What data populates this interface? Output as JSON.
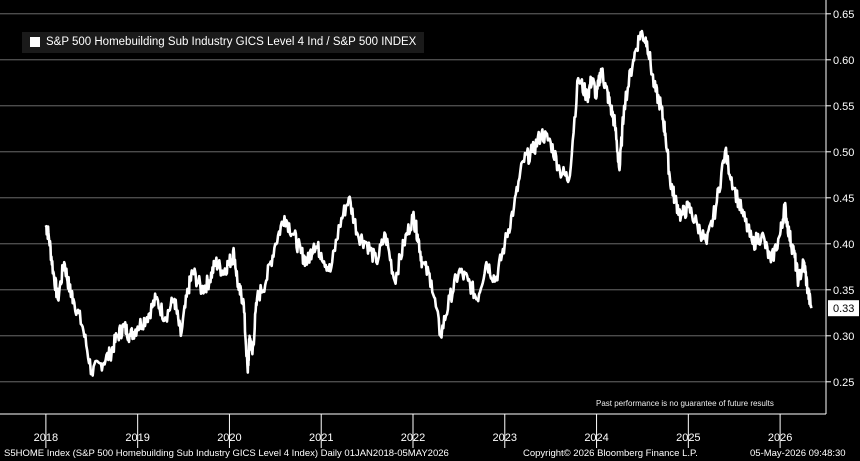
{
  "chart_data": {
    "type": "line",
    "title": "",
    "legend": {
      "label": "S&P 500 Homebuilding Sub Industry GICS Level 4 Ind / S&P 500 INDEX",
      "position": "top-left"
    },
    "y_ticks": [
      "0.25",
      "0.30",
      "0.35",
      "0.40",
      "0.45",
      "0.50",
      "0.55",
      "0.60",
      "0.65"
    ],
    "x_ticks": [
      "2018",
      "2019",
      "2020",
      "2021",
      "2022",
      "2023",
      "2024",
      "2025",
      "2026"
    ],
    "ylim": [
      0.215,
      0.665
    ],
    "grid": true,
    "series": [
      {
        "name": "S&P 500 Homebuilding Sub Industry GICS Level 4 Ind / S&P 500 INDEX",
        "color": "#ffffff",
        "x": [
          2018.0,
          2018.03,
          2018.08,
          2018.13,
          2018.2,
          2018.26,
          2018.3,
          2018.4,
          2018.5,
          2018.6,
          2018.7,
          2018.78,
          2018.85,
          2018.92,
          2019.0,
          2019.1,
          2019.2,
          2019.3,
          2019.4,
          2019.47,
          2019.55,
          2019.6,
          2019.7,
          2019.78,
          2019.85,
          2019.93,
          2020.0,
          2020.05,
          2020.1,
          2020.15,
          2020.2,
          2020.22,
          2020.25,
          2020.3,
          2020.4,
          2020.5,
          2020.6,
          2020.7,
          2020.78,
          2020.85,
          2020.92,
          2021.0,
          2021.1,
          2021.2,
          2021.3,
          2021.4,
          2021.5,
          2021.6,
          2021.7,
          2021.8,
          2021.9,
          2022.0,
          2022.05,
          2022.1,
          2022.2,
          2022.3,
          2022.4,
          2022.5,
          2022.6,
          2022.7,
          2022.8,
          2022.9,
          2023.0,
          2023.1,
          2023.2,
          2023.3,
          2023.4,
          2023.5,
          2023.6,
          2023.7,
          2023.8,
          2023.9,
          2023.95,
          2024.0,
          2024.05,
          2024.1,
          2024.15,
          2024.2,
          2024.25,
          2024.3,
          2024.4,
          2024.48,
          2024.55,
          2024.63,
          2024.7,
          2024.75,
          2024.8,
          2024.85,
          2024.92,
          2025.0,
          2025.1,
          2025.2,
          2025.3,
          2025.4,
          2025.5,
          2025.6,
          2025.7,
          2025.8,
          2025.9,
          2026.0,
          2026.05,
          2026.1,
          2026.15,
          2026.2,
          2026.26,
          2026.3,
          2026.34
        ],
        "y": [
          0.42,
          0.41,
          0.37,
          0.34,
          0.38,
          0.35,
          0.34,
          0.31,
          0.26,
          0.27,
          0.28,
          0.3,
          0.31,
          0.3,
          0.31,
          0.32,
          0.34,
          0.32,
          0.34,
          0.3,
          0.35,
          0.37,
          0.35,
          0.36,
          0.38,
          0.37,
          0.38,
          0.39,
          0.35,
          0.34,
          0.26,
          0.3,
          0.28,
          0.34,
          0.36,
          0.4,
          0.43,
          0.41,
          0.39,
          0.38,
          0.4,
          0.39,
          0.37,
          0.42,
          0.45,
          0.41,
          0.4,
          0.38,
          0.41,
          0.36,
          0.4,
          0.43,
          0.41,
          0.38,
          0.36,
          0.3,
          0.34,
          0.37,
          0.36,
          0.34,
          0.38,
          0.36,
          0.4,
          0.44,
          0.49,
          0.5,
          0.52,
          0.51,
          0.48,
          0.47,
          0.58,
          0.56,
          0.58,
          0.56,
          0.59,
          0.57,
          0.55,
          0.53,
          0.48,
          0.55,
          0.6,
          0.63,
          0.62,
          0.57,
          0.55,
          0.52,
          0.47,
          0.45,
          0.43,
          0.44,
          0.42,
          0.4,
          0.44,
          0.5,
          0.46,
          0.43,
          0.4,
          0.41,
          0.38,
          0.41,
          0.44,
          0.41,
          0.39,
          0.36,
          0.38,
          0.35,
          0.33
        ]
      }
    ],
    "last_value": "0.33",
    "disclaimer": "Past performance is no guarantee of future results"
  },
  "footer": {
    "left": "S5HOME Index (S&P 500 Homebuilding Sub Industry GICS Level 4 Index) Daily 01JAN2018-05MAY2026",
    "center": "Copyright© 2026 Bloomberg Finance L.P.",
    "right": "05-May-2026 09:48:30"
  }
}
